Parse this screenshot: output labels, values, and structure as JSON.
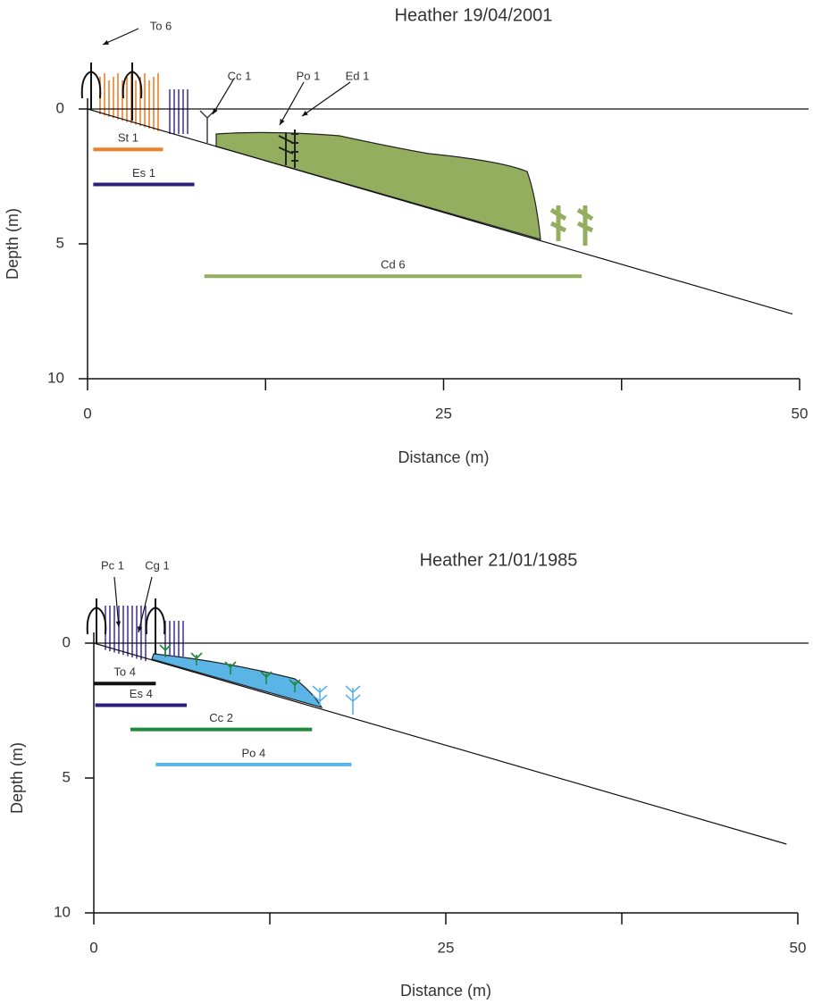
{
  "chart_data": [
    {
      "type": "transect",
      "title": "Heather 19/04/2001",
      "xlabel": "Distance (m)",
      "ylabel": "Depth (m)",
      "xlim": [
        0,
        50
      ],
      "ylim": [
        0,
        10
      ],
      "y_inverted": true,
      "xticks": [
        0,
        25,
        50
      ],
      "xticks_minor": [
        12.5,
        37.5
      ],
      "yticks": [
        0,
        5,
        10
      ],
      "profile": {
        "x": [
          0,
          49.5
        ],
        "y": [
          0,
          7.6
        ]
      },
      "zones": [
        {
          "name": "St 1",
          "color": "#f07f2a",
          "start": 0.4,
          "end": 5.3,
          "depth": 1.5
        },
        {
          "name": "Es 1",
          "color": "#2a1f7a",
          "start": 0.4,
          "end": 7.5,
          "depth": 2.8
        },
        {
          "name": "Cd 6",
          "color": "#93ae5f",
          "start": 8.2,
          "end": 34.7,
          "depth": 6.2
        }
      ],
      "annotations": [
        "To 6",
        "Cc 1",
        "Po 1",
        "Ed 1"
      ]
    },
    {
      "type": "transect",
      "title": "Heather 21/01/1985",
      "xlabel": "Distance (m)",
      "ylabel": "Depth (m)",
      "xlim": [
        0,
        50
      ],
      "ylim": [
        0,
        10
      ],
      "y_inverted": true,
      "xticks": [
        0,
        25,
        50
      ],
      "xticks_minor": [
        12.5,
        37.5
      ],
      "yticks": [
        0,
        5,
        10
      ],
      "profile": {
        "x": [
          0,
          49.2
        ],
        "y": [
          0,
          7.45
        ]
      },
      "zones": [
        {
          "name": "To 4",
          "color": "#111111",
          "start": 0,
          "end": 4.4,
          "depth": 1.5
        },
        {
          "name": "Es 4",
          "color": "#2a1f7a",
          "start": 0.1,
          "end": 6.6,
          "depth": 2.3
        },
        {
          "name": "Cc 2",
          "color": "#1f8a3a",
          "start": 2.6,
          "end": 15.5,
          "depth": 3.2
        },
        {
          "name": "Po 4",
          "color": "#5ab4e6",
          "start": 4.4,
          "end": 18.3,
          "depth": 4.5
        }
      ],
      "annotations": [
        "Pc 1",
        "Cg 1"
      ]
    }
  ]
}
